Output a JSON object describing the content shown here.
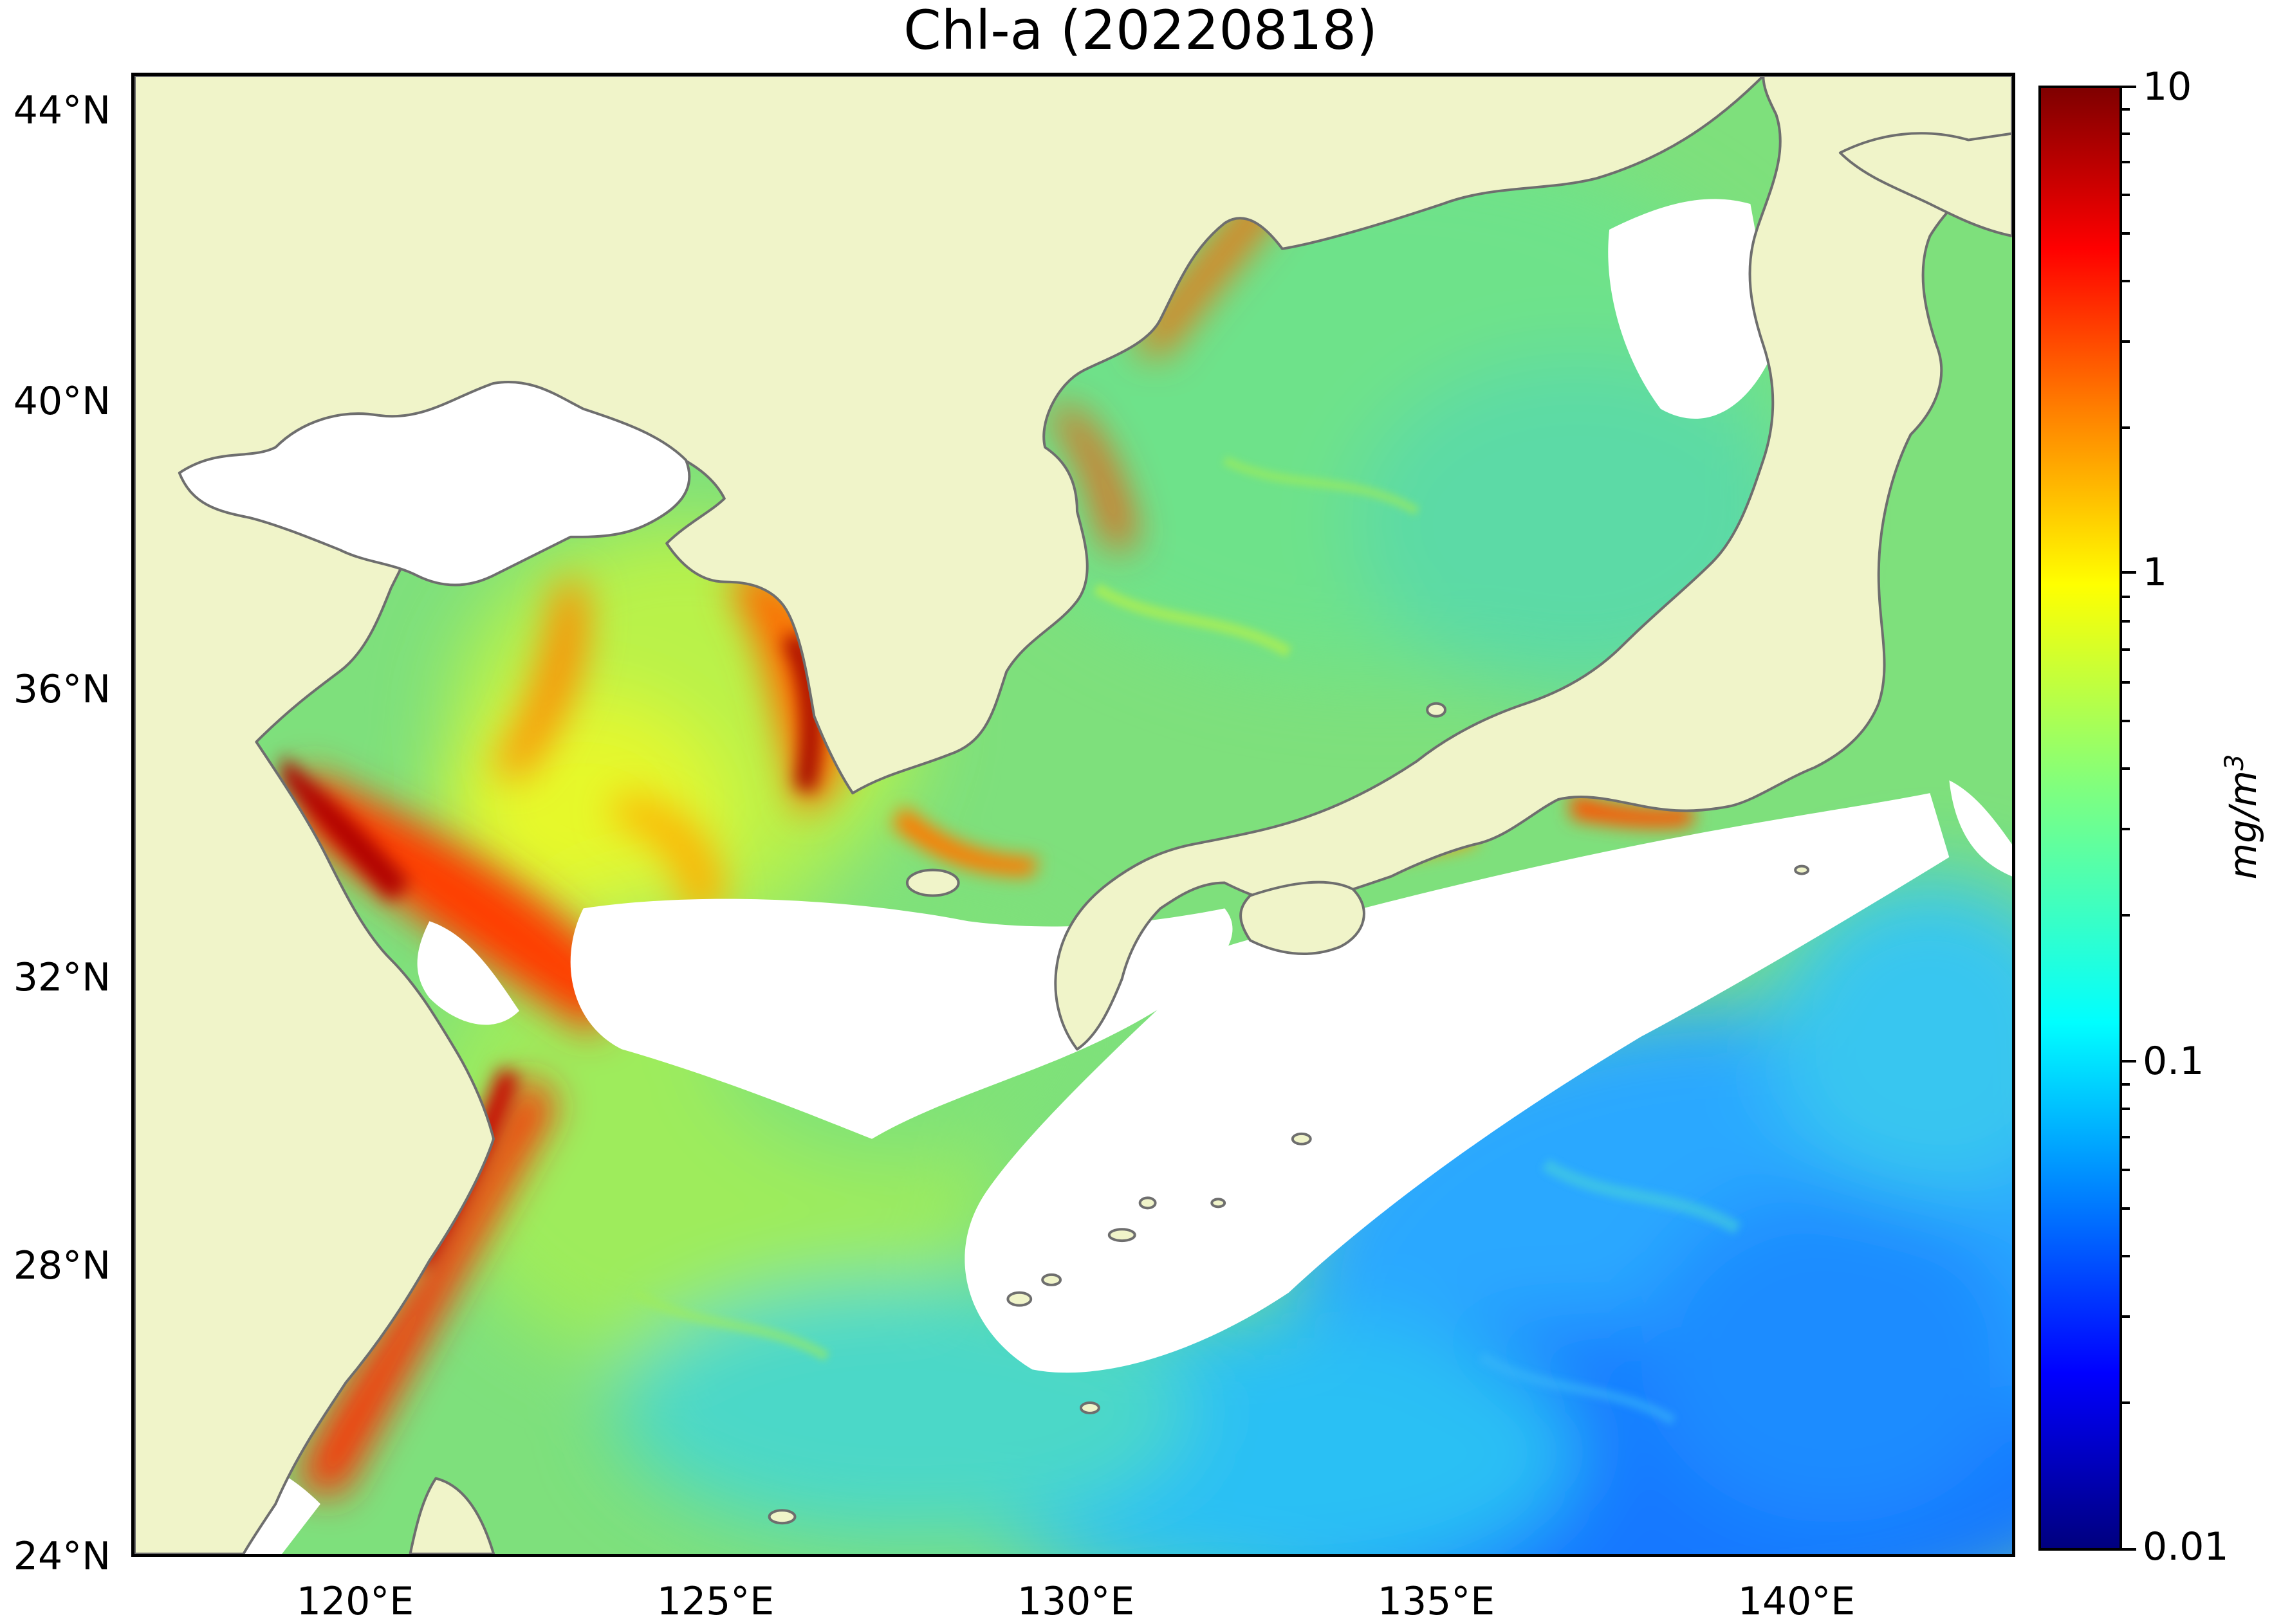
{
  "title": "Chl-a (20220818)",
  "map": {
    "variable": "Chlorophyll-a",
    "region": "Yellow Sea, East China Sea, Sea of Japan",
    "land_color": "#f0f4c9",
    "no_data_color": "#ffffff",
    "coastline_color": "#6e6e6e",
    "lon_ticks": [
      "120°E",
      "125°E",
      "130°E",
      "135°E",
      "140°E"
    ],
    "lat_ticks": [
      "44°N",
      "40°N",
      "36°N",
      "32°N",
      "28°N",
      "24°N"
    ]
  },
  "colorbar": {
    "scale": "log",
    "colormap": "jet",
    "range": [
      0.01,
      10
    ],
    "tick_labels": [
      "10",
      "1",
      "0.1",
      "0.01"
    ],
    "unit_label": "mg/m",
    "unit_exponent": "3"
  }
}
